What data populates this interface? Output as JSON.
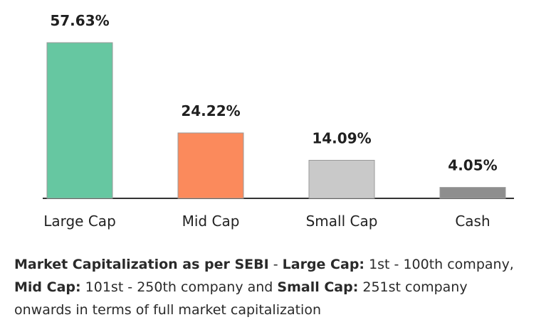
{
  "chart_data": {
    "type": "bar",
    "categories": [
      "Large Cap",
      "Mid Cap",
      "Small Cap",
      "Cash"
    ],
    "values": [
      57.63,
      24.22,
      14.09,
      4.05
    ],
    "value_labels": [
      "57.63%",
      "24.22%",
      "14.09%",
      "4.05%"
    ],
    "colors": [
      "#66c7a1",
      "#fb8a5c",
      "#c9c9c9",
      "#8e8e8e"
    ],
    "title": "",
    "xlabel": "",
    "ylabel": "",
    "ylim": [
      0,
      60
    ],
    "grid": false,
    "legend": "none"
  },
  "footnote": {
    "title": "Market Capitalization as per SEBI",
    "sep1": " - ",
    "large_label": "Large Cap:",
    "large_text": " 1st - 100th company, ",
    "mid_label": "Mid Cap:",
    "mid_text": " 101st - 250th company and ",
    "small_label": "Small Cap:",
    "small_text": " 251st company onwards in terms of full market capitalization"
  },
  "colors": {
    "axis": "#333333",
    "bar_outline": "#999999"
  }
}
